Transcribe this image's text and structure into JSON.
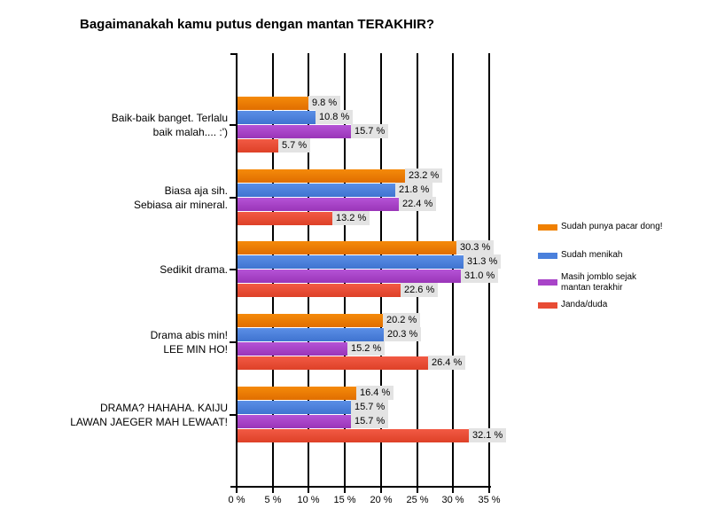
{
  "chart_data": {
    "type": "bar",
    "orientation": "horizontal",
    "title": "Bagaimanakah kamu putus dengan mantan TERAKHIR?",
    "xlabel": "",
    "ylabel": "",
    "xlim": [
      0,
      35
    ],
    "x_ticks": [
      "0 %",
      "5 %",
      "10 %",
      "15 %",
      "20 %",
      "25 %",
      "30 %",
      "35 %"
    ],
    "grid": true,
    "legend_position": "right",
    "categories": [
      "Baik-baik banget. Terlalu baik malah.... :')",
      "Biasa aja sih. Sebiasa air mineral.",
      "Sedikit drama.",
      "Drama abis min! LEE MIN HO!",
      "DRAMA? HAHAHA. KAIJU LAWAN JAEGER MAH LEWAAT!"
    ],
    "series": [
      {
        "name": "Sudah punya pacar dong!",
        "color": "#f08000",
        "values": [
          9.8,
          23.2,
          30.3,
          20.2,
          16.4
        ]
      },
      {
        "name": "Sudah menikah",
        "color": "#4a80dc",
        "values": [
          10.8,
          21.8,
          31.3,
          20.3,
          15.7
        ]
      },
      {
        "name": "Masih jomblo sejak mantan terakhir",
        "color": "#a844c8",
        "values": [
          15.7,
          22.4,
          31.0,
          15.2,
          15.7
        ]
      },
      {
        "name": "Janda/duda",
        "color": "#e84c34",
        "values": [
          5.7,
          13.2,
          22.6,
          26.4,
          32.1
        ]
      }
    ],
    "value_labels": [
      [
        "9.8 %",
        "10.8 %",
        "15.7 %",
        "5.7 %"
      ],
      [
        "23.2 %",
        "21.8 %",
        "22.4 %",
        "13.2 %"
      ],
      [
        "30.3 %",
        "31.3 %",
        "31.0 %",
        "22.6 %"
      ],
      [
        "20.2 %",
        "20.3 %",
        "15.2 %",
        "26.4 %"
      ],
      [
        "16.4 %",
        "15.7 %",
        "15.7 %",
        "32.1 %"
      ]
    ]
  },
  "labels": {
    "categories": [
      [
        "Baik-baik banget. Terlalu",
        "baik malah.... :')"
      ],
      [
        "Biasa aja sih.",
        "Sebiasa air mineral."
      ],
      [
        "Sedikit drama."
      ],
      [
        "Drama abis min!",
        "LEE MIN HO!"
      ],
      [
        "DRAMA? HAHAHA. KAIJU",
        "LAWAN JAEGER MAH LEWAAT!"
      ]
    ],
    "legend": [
      [
        "Sudah punya pacar dong!"
      ],
      [
        "Sudah menikah"
      ],
      [
        "Masih jomblo sejak",
        "mantan terakhir"
      ],
      [
        "Janda/duda"
      ]
    ]
  }
}
